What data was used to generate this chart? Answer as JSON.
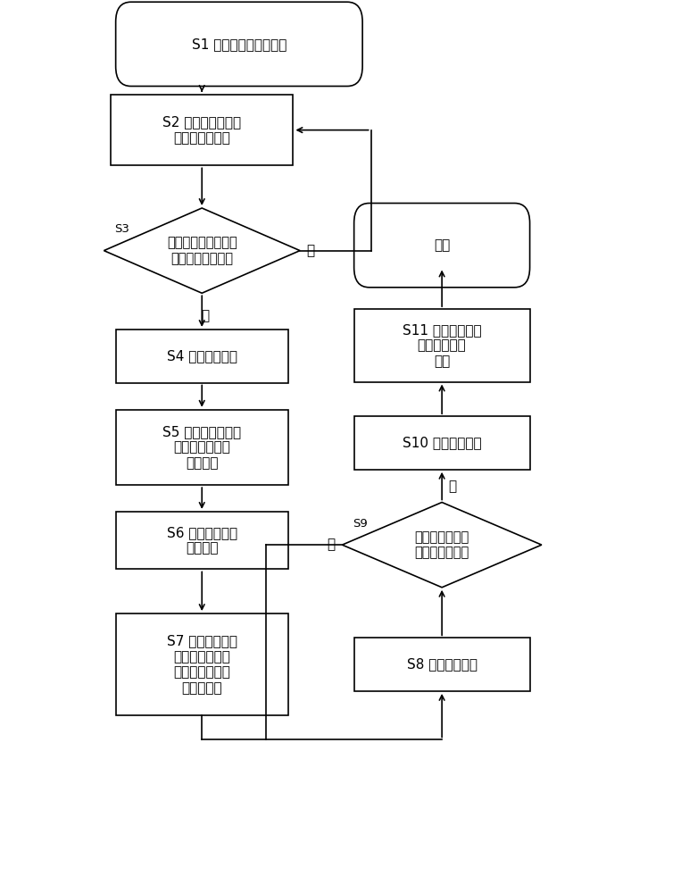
{
  "bg_color": "#ffffff",
  "line_color": "#000000",
  "font_size": 11,
  "s1_text": "S1 控制器控制辊道转动",
  "s2_text": "S2 钢板在辊道上向\n切头剪方向传送",
  "s3_text": "判别钢板头部是否到\n达第二光栅的位置",
  "s3_label": "S3",
  "s4_text": "S4 辊道停止转动",
  "s5_text": "S5 工业相机对钢板\n头部照相，产生\n图像信号",
  "s6_text": "S6 图像信号传送\n到控制器",
  "s7_text": "S7 控制器对图像\n信号进行处理，\n得到切头剪剪刃\n剪切的时间",
  "s8_text": "S8 辊道继续转动",
  "s9_text": "是否到达给定的\n剪刀剪切的时间",
  "s9_label": "S9",
  "s10_text": "S10 辊道停止转动",
  "s11_text": "S11 切头剪剪刃对\n钢板进行切头\n作业",
  "end_text": "结束",
  "yes_text": "是",
  "no_text": "否"
}
